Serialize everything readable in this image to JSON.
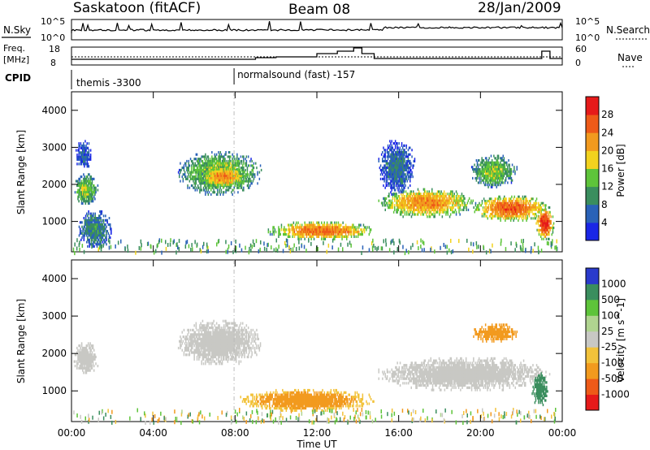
{
  "header": {
    "station": "Saskatoon (fitACF)",
    "beam": "Beam 08",
    "date": "28/Jan/2009"
  },
  "strips": {
    "nsky_label": "N.Sky",
    "nsky_ticks": [
      "10^5",
      "10^0"
    ],
    "nsearch_label": "N.Search",
    "nsearch_ticks": [
      "10^5",
      "10^0"
    ],
    "freq_label": "Freq.",
    "freq_unit": "[MHz]",
    "freq_ticks": [
      "18",
      "8"
    ],
    "nave_label": "Nave",
    "nave_ticks": [
      "60",
      "0"
    ],
    "cpid_label": "CPID",
    "cpid_segments": [
      {
        "start_hr": 0.0,
        "label": "themis -3300"
      },
      {
        "start_hr": 7.95,
        "label": "normalsound (fast) -157"
      }
    ]
  },
  "panels": {
    "power_ylabel": "Slant Range [km]",
    "velocity_ylabel": "Slant Range [km]",
    "y_ticks": [
      "1000",
      "2000",
      "3000",
      "4000"
    ],
    "x_ticks": [
      "00:00",
      "04:00",
      "08:00",
      "12:00",
      "16:00",
      "20:00",
      "00:00"
    ],
    "x_title": "Time UT"
  },
  "colorbars": {
    "power_title": "Power [dB]",
    "power_ticks": [
      "4",
      "8",
      "12",
      "16",
      "20",
      "24",
      "28"
    ],
    "power_colors": [
      "#1a26e6",
      "#2a62b8",
      "#3a8e5e",
      "#5ec43a",
      "#f2d21e",
      "#f29a1e",
      "#ee5a18",
      "#e61a1a"
    ],
    "velocity_title": "Velocity [m s^-1]",
    "velocity_ticks": [
      "1000",
      "500",
      "100",
      "25",
      "-25",
      "-100",
      "-500",
      "-1000"
    ],
    "velocity_colors": [
      "#2a3acc",
      "#3a8e5e",
      "#5ec43a",
      "#b0d490",
      "#c8c8c4",
      "#f2c23a",
      "#f29a1e",
      "#ee5a18",
      "#e61a1a"
    ]
  },
  "chart_data": [
    {
      "type": "heatmap",
      "title": "Power",
      "xlabel": "Time UT",
      "ylabel": "Slant Range [km]",
      "xlim_hr": [
        0,
        24
      ],
      "ylim_km": [
        180,
        4500
      ],
      "zlabel": "Power [dB]",
      "zlim": [
        0,
        30
      ],
      "regions": [
        {
          "t": [
            0.1,
            1.3
          ],
          "r": [
            1400,
            2300
          ],
          "z": 14
        },
        {
          "t": [
            0.2,
            1.0
          ],
          "r": [
            2400,
            3200
          ],
          "z": 6
        },
        {
          "t": [
            0.3,
            2.0
          ],
          "r": [
            300,
            1300
          ],
          "z": 9
        },
        {
          "t": [
            5.2,
            9.3
          ],
          "r": [
            1700,
            2900
          ],
          "z": 15
        },
        {
          "t": [
            6.3,
            8.6
          ],
          "r": [
            1900,
            2500
          ],
          "z": 22
        },
        {
          "t": [
            9.6,
            14.8
          ],
          "r": [
            500,
            1000
          ],
          "z": 24
        },
        {
          "t": [
            15.0,
            19.7
          ],
          "r": [
            1100,
            1900
          ],
          "z": 22
        },
        {
          "t": [
            15.0,
            16.8
          ],
          "r": [
            1700,
            3200
          ],
          "z": 7
        },
        {
          "t": [
            19.6,
            23.4
          ],
          "r": [
            1000,
            1700
          ],
          "z": 25
        },
        {
          "t": [
            19.5,
            21.8
          ],
          "r": [
            1900,
            2800
          ],
          "z": 14
        },
        {
          "t": [
            22.7,
            23.6
          ],
          "r": [
            500,
            1400
          ],
          "z": 28
        }
      ]
    },
    {
      "type": "heatmap",
      "title": "Velocity",
      "xlabel": "Time UT",
      "ylabel": "Slant Range [km]",
      "xlim_hr": [
        0,
        24
      ],
      "ylim_km": [
        180,
        4500
      ],
      "zlabel": "Velocity [m s^-1]",
      "zlim": [
        -1000,
        1000
      ],
      "regions": [
        {
          "t": [
            0.1,
            1.3
          ],
          "r": [
            1400,
            2300
          ],
          "z": 0
        },
        {
          "t": [
            5.2,
            9.3
          ],
          "r": [
            1700,
            2900
          ],
          "z": 5
        },
        {
          "t": [
            8.2,
            14.8
          ],
          "r": [
            450,
            1050
          ],
          "z": -150
        },
        {
          "t": [
            15.0,
            23.4
          ],
          "r": [
            1000,
            1900
          ],
          "z": 0
        },
        {
          "t": [
            19.5,
            21.8
          ],
          "r": [
            2300,
            2800
          ],
          "z": -300
        },
        {
          "t": [
            22.5,
            23.3
          ],
          "r": [
            600,
            1500
          ],
          "z": 300
        }
      ]
    }
  ]
}
